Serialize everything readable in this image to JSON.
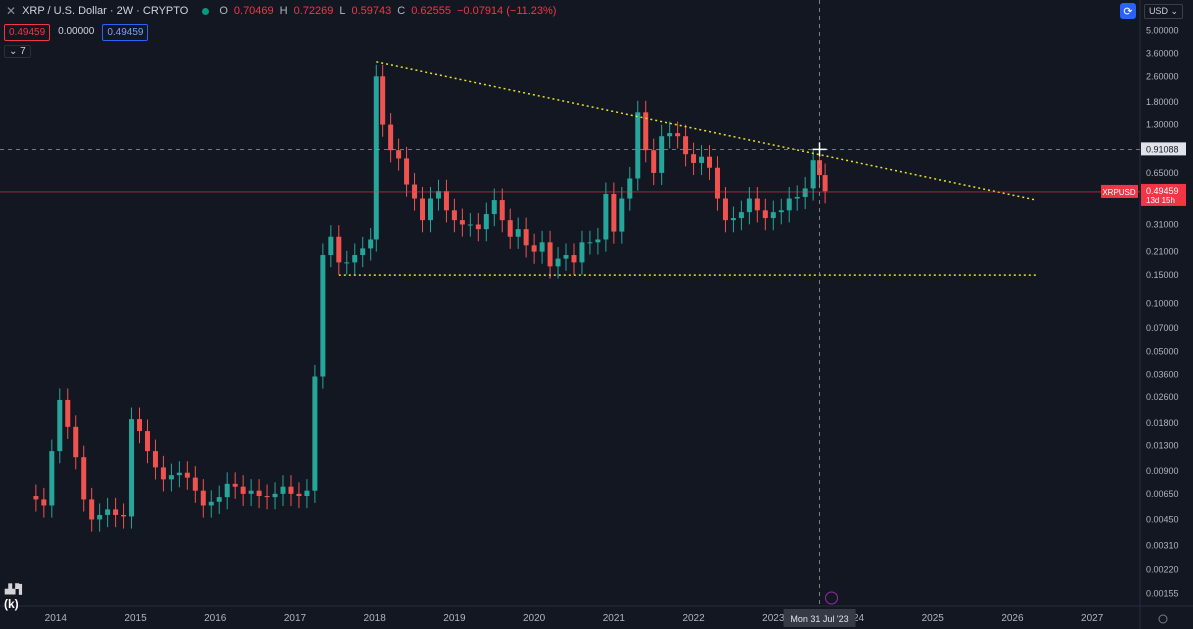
{
  "header": {
    "symbol": "XRP / U.S. Dollar · 2W · CRYPTO",
    "open_label": "O",
    "open": "0.70469",
    "high_label": "H",
    "high": "0.72269",
    "low_label": "L",
    "low": "0.59743",
    "close_label": "C",
    "close": "0.62555",
    "change": "−0.07914 (−11.23%)"
  },
  "indicators": {
    "a": "0.49459",
    "b": "0.00000",
    "c": "0.49459"
  },
  "collapse_count": "7",
  "currency": "USD",
  "watermark": "(k)",
  "colors": {
    "bg": "#131722",
    "up": "#26a69a",
    "down": "#ef5350",
    "trend": "#e7e02a",
    "price": "#f23645"
  },
  "chart_data": {
    "type": "candlestick",
    "scale": "log",
    "ylim": [
      0.0013,
      6.0
    ],
    "xlim": [
      2013.3,
      2027.6
    ],
    "x_ticks": [
      "2014",
      "2015",
      "2016",
      "2017",
      "2018",
      "2019",
      "2020",
      "2021",
      "2022",
      "2023",
      "2024",
      "2025",
      "2026",
      "2027"
    ],
    "x_tick_values": [
      2014,
      2015,
      2016,
      2017,
      2018,
      2019,
      2020,
      2021,
      2022,
      2023,
      2024,
      2025,
      2026,
      2027
    ],
    "y_ticks": [
      "5.00000",
      "3.60000",
      "2.60000",
      "1.80000",
      "1.30000",
      "0.91088",
      "0.65000",
      "0.49459",
      "0.31000",
      "0.21000",
      "0.15000",
      "0.10000",
      "0.07000",
      "0.05000",
      "0.03600",
      "0.02600",
      "0.01800",
      "0.01300",
      "0.00900",
      "0.00650",
      "0.00450",
      "0.00310",
      "0.00220",
      "0.00155"
    ],
    "y_tick_values": [
      5,
      3.6,
      2.6,
      1.8,
      1.3,
      0.91088,
      0.65,
      0.49459,
      0.31,
      0.21,
      0.15,
      0.1,
      0.07,
      0.05,
      0.036,
      0.026,
      0.018,
      0.013,
      0.009,
      0.0065,
      0.0045,
      0.0031,
      0.0022,
      0.00155
    ],
    "price_label": {
      "symbol": "XRPUSD",
      "value": "0.49459",
      "countdown": "13d 15h",
      "y": 0.49459
    },
    "crosshair": {
      "value": "0.91088",
      "date_label": "Mon 31 Jul '23",
      "x": 2023.58,
      "y": 0.91088
    },
    "trendlines": [
      {
        "x1": 2018.02,
        "y1": 3.2,
        "x2": 2026.3,
        "y2": 0.44
      },
      {
        "x1": 2017.55,
        "y1": 0.15,
        "x2": 2026.3,
        "y2": 0.15
      }
    ],
    "closes": [
      [
        2013.75,
        0.006
      ],
      [
        2013.85,
        0.0055
      ],
      [
        2013.95,
        0.012
      ],
      [
        2014.05,
        0.025
      ],
      [
        2014.15,
        0.017
      ],
      [
        2014.25,
        0.011
      ],
      [
        2014.35,
        0.006
      ],
      [
        2014.45,
        0.0045
      ],
      [
        2014.55,
        0.0048
      ],
      [
        2014.65,
        0.0052
      ],
      [
        2014.75,
        0.0048
      ],
      [
        2014.85,
        0.0047
      ],
      [
        2014.95,
        0.019
      ],
      [
        2015.05,
        0.016
      ],
      [
        2015.15,
        0.012
      ],
      [
        2015.25,
        0.0095
      ],
      [
        2015.35,
        0.008
      ],
      [
        2015.45,
        0.0085
      ],
      [
        2015.55,
        0.0088
      ],
      [
        2015.65,
        0.0082
      ],
      [
        2015.75,
        0.0068
      ],
      [
        2015.85,
        0.0055
      ],
      [
        2015.95,
        0.0058
      ],
      [
        2016.05,
        0.0062
      ],
      [
        2016.15,
        0.0075
      ],
      [
        2016.25,
        0.0072
      ],
      [
        2016.35,
        0.0065
      ],
      [
        2016.45,
        0.0068
      ],
      [
        2016.55,
        0.0063
      ],
      [
        2016.65,
        0.0062
      ],
      [
        2016.75,
        0.0065
      ],
      [
        2016.85,
        0.0072
      ],
      [
        2016.95,
        0.0065
      ],
      [
        2017.05,
        0.0063
      ],
      [
        2017.15,
        0.0068
      ],
      [
        2017.25,
        0.035
      ],
      [
        2017.35,
        0.2
      ],
      [
        2017.45,
        0.26
      ],
      [
        2017.55,
        0.18
      ],
      [
        2017.65,
        0.18
      ],
      [
        2017.75,
        0.2
      ],
      [
        2017.85,
        0.22
      ],
      [
        2017.95,
        0.25
      ],
      [
        2018.02,
        2.6
      ],
      [
        2018.1,
        1.3
      ],
      [
        2018.2,
        0.9
      ],
      [
        2018.3,
        0.8
      ],
      [
        2018.4,
        0.55
      ],
      [
        2018.5,
        0.45
      ],
      [
        2018.6,
        0.33
      ],
      [
        2018.7,
        0.45
      ],
      [
        2018.8,
        0.5
      ],
      [
        2018.9,
        0.38
      ],
      [
        2019.0,
        0.33
      ],
      [
        2019.1,
        0.31
      ],
      [
        2019.2,
        0.31
      ],
      [
        2019.3,
        0.29
      ],
      [
        2019.4,
        0.36
      ],
      [
        2019.5,
        0.44
      ],
      [
        2019.6,
        0.33
      ],
      [
        2019.7,
        0.26
      ],
      [
        2019.8,
        0.29
      ],
      [
        2019.9,
        0.23
      ],
      [
        2020.0,
        0.21
      ],
      [
        2020.1,
        0.24
      ],
      [
        2020.2,
        0.17
      ],
      [
        2020.3,
        0.19
      ],
      [
        2020.4,
        0.2
      ],
      [
        2020.5,
        0.18
      ],
      [
        2020.6,
        0.24
      ],
      [
        2020.7,
        0.24
      ],
      [
        2020.8,
        0.25
      ],
      [
        2020.9,
        0.48
      ],
      [
        2021.0,
        0.28
      ],
      [
        2021.1,
        0.45
      ],
      [
        2021.2,
        0.6
      ],
      [
        2021.3,
        1.55
      ],
      [
        2021.4,
        0.9
      ],
      [
        2021.5,
        0.65
      ],
      [
        2021.6,
        1.1
      ],
      [
        2021.7,
        1.15
      ],
      [
        2021.8,
        1.1
      ],
      [
        2021.9,
        0.85
      ],
      [
        2022.0,
        0.75
      ],
      [
        2022.1,
        0.82
      ],
      [
        2022.2,
        0.7
      ],
      [
        2022.3,
        0.45
      ],
      [
        2022.4,
        0.33
      ],
      [
        2022.5,
        0.34
      ],
      [
        2022.6,
        0.37
      ],
      [
        2022.7,
        0.45
      ],
      [
        2022.8,
        0.38
      ],
      [
        2022.9,
        0.34
      ],
      [
        2023.0,
        0.37
      ],
      [
        2023.1,
        0.38
      ],
      [
        2023.2,
        0.45
      ],
      [
        2023.3,
        0.46
      ],
      [
        2023.4,
        0.52
      ],
      [
        2023.5,
        0.78
      ],
      [
        2023.58,
        0.63
      ],
      [
        2023.65,
        0.5
      ]
    ]
  }
}
